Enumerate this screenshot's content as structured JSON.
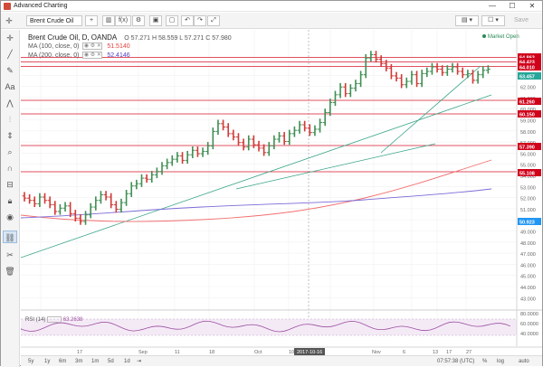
{
  "window": {
    "title": "Advanced Charting",
    "minimize": "—",
    "maximize": "☐",
    "close": "✕"
  },
  "toolbar": {
    "symbol": "Brent Crude Oil",
    "buttons": [
      "f(x)",
      "⚙",
      "↶",
      "↷",
      "⤢"
    ],
    "chart_type_label": "▤ ▾",
    "layout_label": "☐ ▾",
    "save_label": "Save"
  },
  "legend": {
    "instrument": "Brent Crude Oil, D, OANDA",
    "ohlc": "O 57.271  H 58.559  L 57.271  C 57.980",
    "ma100_label": "MA (100, close, 0)",
    "ma100_value": "51.5140",
    "ma200_label": "MA (200, close, 0)",
    "ma200_value": "52.4146",
    "rsi_label": "RSI (14)",
    "rsi_value": "63.2638"
  },
  "market_status": "Market Open",
  "price_labels": [
    {
      "text": "64.863",
      "color": "#d0021b"
    },
    {
      "text": "64.423",
      "color": "#d0021b"
    },
    {
      "text": "64.010",
      "color": "#d0021b"
    },
    {
      "text": "63.457",
      "color": "#26a69a"
    },
    {
      "text": "61.260",
      "color": "#d0021b"
    },
    {
      "text": "60.150",
      "color": "#d0021b"
    },
    {
      "text": "57.390",
      "color": "#d0021b"
    },
    {
      "text": "55.108",
      "color": "#d0021b"
    },
    {
      "text": "50.923",
      "color": "#2196f3"
    }
  ],
  "yaxis_ticks": [
    "64.000",
    "63.000",
    "62.000",
    "61.000",
    "60.000",
    "59.000",
    "58.000",
    "57.000",
    "56.000",
    "55.000",
    "54.000",
    "53.000",
    "52.000",
    "51.000",
    "50.000",
    "49.000",
    "48.000",
    "47.000",
    "46.000",
    "45.000",
    "44.000",
    "43.000"
  ],
  "rsi_ticks": [
    "80.0000",
    "60.0000",
    "40.0000"
  ],
  "xaxis_ticks": [
    "17",
    "Sep",
    "11",
    "18",
    "Oct",
    "10",
    "Nov",
    "6",
    "13",
    "17",
    "27"
  ],
  "xaxis_highlight": "2017-10-16",
  "timeframes": [
    "5y",
    "1y",
    "6m",
    "3m",
    "1m",
    "5d",
    "1d"
  ],
  "status": {
    "time": "07:57:38 (UTC)",
    "pct": "%",
    "log": "log",
    "auto": "auto"
  },
  "colors": {
    "up": "#3f8f53",
    "down": "#d03a36",
    "hline": "#e05060",
    "trend": "#3aa58a",
    "ma100": "#f26f6f",
    "ma200": "#7b6bd6",
    "rsi": "#9c4fa0"
  }
}
